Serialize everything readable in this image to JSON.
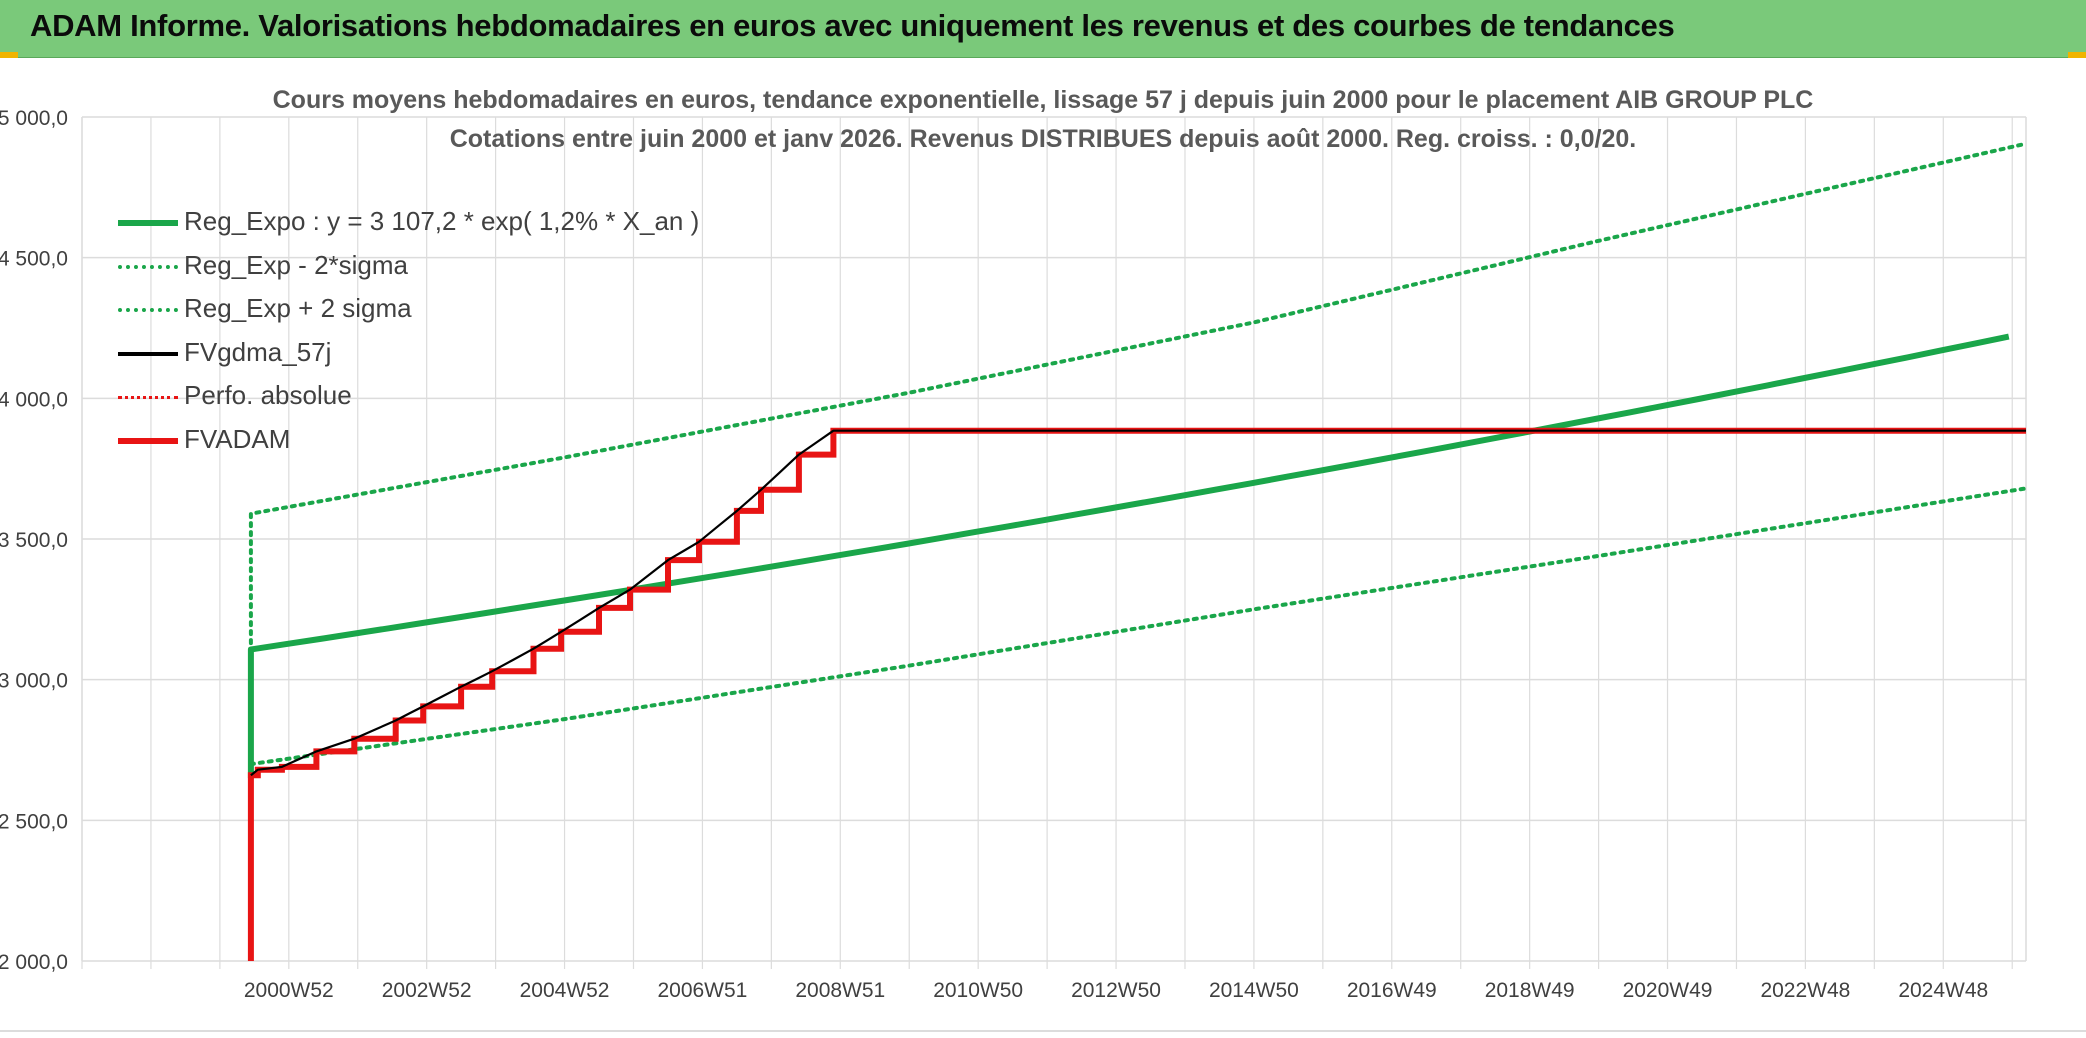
{
  "banner": {
    "title": "ADAM Informe. Valorisations hebdomadaires en euros avec uniquement les revenus et des courbes de tendances"
  },
  "colors": {
    "banner_bg": "#7ac97a",
    "accent_corner": "#f0b400",
    "reg_green": "#1aa64a",
    "red": "#e81414",
    "black": "#000000",
    "grid": "#dcdcdc"
  },
  "chart_data": {
    "type": "line",
    "title_lines": [
      "Cours moyens hebdomadaires en euros, tendance exponentielle, lissage 57 j depuis juin 2000 pour le placement AIB GROUP PLC",
      "Cotations entre juin 2000 et janv 2026. Revenus DISTRIBUES depuis août 2000. Reg. croiss. : 0,0/20."
    ],
    "x_tick_labels": [
      "2000W52",
      "2002W52",
      "2004W52",
      "2006W51",
      "2008W51",
      "2010W50",
      "2012W50",
      "2014W50",
      "2016W49",
      "2018W49",
      "2020W49",
      "2022W48",
      "2024W48"
    ],
    "x_range_years": [
      1998.0,
      2026.2
    ],
    "y_ticks": [
      "2 000,0",
      "2 500,0",
      "3 000,0",
      "3 500,0",
      "4 000,0",
      "4 500,0",
      "5 000,0"
    ],
    "ylim": [
      2000,
      5000
    ],
    "grid": true,
    "legend_position": "top-left",
    "series": [
      {
        "name": "Reg_Expo : y = 3 107,2 * exp( 1,2% *  X_an )",
        "style": "solid-green",
        "formula": {
          "start_year": 2000.45,
          "end_year": 2026.2,
          "a": 3107.2,
          "rate": 0.012
        },
        "drop_at_start": [
          2650,
          3107.2
        ]
      },
      {
        "name": "Reg_Exp - 2*sigma",
        "style": "dotted-green",
        "points": [
          [
            2000.45,
            2700
          ],
          [
            2005,
            2860
          ],
          [
            2010,
            3050
          ],
          [
            2015,
            3250
          ],
          [
            2020,
            3440
          ],
          [
            2026.2,
            3680
          ]
        ]
      },
      {
        "name": "Reg_Exp + 2 sigma",
        "style": "dotted-green",
        "points": [
          [
            2000.45,
            2650
          ],
          [
            2000.45,
            3590
          ],
          [
            2005,
            3790
          ],
          [
            2010,
            4020
          ],
          [
            2015,
            4270
          ],
          [
            2020,
            4560
          ],
          [
            2026.2,
            4905
          ]
        ]
      },
      {
        "name": "FVgdma_57j",
        "style": "solid-black",
        "steps": [
          [
            2000.45,
            2660
          ],
          [
            2000.55,
            2680
          ],
          [
            2000.9,
            2690
          ],
          [
            2001.4,
            2745
          ],
          [
            2001.95,
            2790
          ],
          [
            2002.55,
            2855
          ],
          [
            2002.95,
            2905
          ],
          [
            2003.5,
            2975
          ],
          [
            2003.95,
            3030
          ],
          [
            2004.55,
            3110
          ],
          [
            2004.95,
            3170
          ],
          [
            2005.5,
            3255
          ],
          [
            2005.95,
            3320
          ],
          [
            2006.5,
            3425
          ],
          [
            2006.95,
            3490
          ],
          [
            2007.5,
            3600
          ],
          [
            2007.85,
            3675
          ],
          [
            2008.4,
            3800
          ],
          [
            2008.9,
            3885
          ],
          [
            2026.2,
            3885
          ]
        ]
      },
      {
        "name": "Perfo. absolue",
        "style": "dotted-red",
        "hidden_behind": "FVADAM"
      },
      {
        "name": "FVADAM",
        "style": "solid-red",
        "start_value": 2000,
        "steps": [
          [
            2000.45,
            2660
          ],
          [
            2000.55,
            2680
          ],
          [
            2000.9,
            2690
          ],
          [
            2001.4,
            2745
          ],
          [
            2001.95,
            2790
          ],
          [
            2002.55,
            2855
          ],
          [
            2002.95,
            2905
          ],
          [
            2003.5,
            2975
          ],
          [
            2003.95,
            3030
          ],
          [
            2004.55,
            3110
          ],
          [
            2004.95,
            3170
          ],
          [
            2005.5,
            3255
          ],
          [
            2005.95,
            3320
          ],
          [
            2006.5,
            3425
          ],
          [
            2006.95,
            3490
          ],
          [
            2007.5,
            3600
          ],
          [
            2007.85,
            3675
          ],
          [
            2008.4,
            3800
          ],
          [
            2008.9,
            3885
          ],
          [
            2026.2,
            3885
          ]
        ]
      }
    ]
  }
}
